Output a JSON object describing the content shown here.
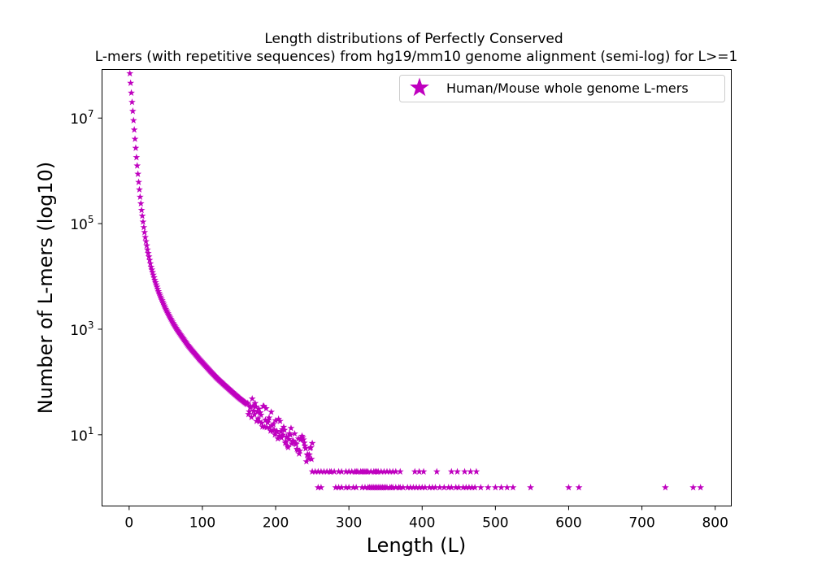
{
  "chart_data": {
    "type": "scatter",
    "title_line1": "Length distributions of Perfectly Conserved",
    "title_line2": "L-mers (with repetitive sequences) from hg19/mm10 genome alignment (semi-log) for L>=1",
    "xlabel": "Length (L)",
    "ylabel": "Number of L-mers (log10)",
    "y_scale": "log",
    "xlim": [
      -37,
      822
    ],
    "ylim_log10": [
      -0.35,
      7.92
    ],
    "x_ticks": [
      0,
      100,
      200,
      300,
      400,
      500,
      600,
      700,
      800
    ],
    "y_ticks": [
      {
        "base": "10",
        "exp": "1",
        "log10": 1
      },
      {
        "base": "10",
        "exp": "3",
        "log10": 3
      },
      {
        "base": "10",
        "exp": "5",
        "log10": 5
      },
      {
        "base": "10",
        "exp": "7",
        "log10": 7
      }
    ],
    "grid": false,
    "legend_position": "upper-right",
    "series": [
      {
        "name": "Human/Mouse whole genome L-mers",
        "color": "#bf00bf",
        "marker": "star",
        "curve": [
          [
            1,
            70000000
          ],
          [
            2,
            46000000
          ],
          [
            3,
            30000000
          ],
          [
            4,
            20000000
          ],
          [
            5,
            13500000
          ],
          [
            6,
            9000000
          ],
          [
            7,
            6000000
          ],
          [
            8,
            4000000
          ],
          [
            9,
            2700000
          ],
          [
            10,
            1800000
          ],
          [
            11,
            1250000
          ],
          [
            12,
            870000
          ],
          [
            13,
            610000
          ],
          [
            14,
            440000
          ],
          [
            15,
            320000
          ],
          [
            16,
            240000
          ],
          [
            17,
            180000
          ],
          [
            18,
            140000
          ],
          [
            19,
            108000
          ],
          [
            20,
            85000
          ],
          [
            22,
            55000
          ],
          [
            25,
            32000
          ],
          [
            30,
            15000
          ],
          [
            35,
            8500
          ],
          [
            40,
            5200
          ],
          [
            45,
            3500
          ],
          [
            50,
            2400
          ],
          [
            55,
            1750
          ],
          [
            60,
            1300
          ],
          [
            65,
            1000
          ],
          [
            70,
            790
          ],
          [
            75,
            630
          ],
          [
            80,
            500
          ],
          [
            85,
            410
          ],
          [
            90,
            340
          ],
          [
            95,
            280
          ],
          [
            100,
            235
          ],
          [
            110,
            165
          ],
          [
            120,
            118
          ],
          [
            130,
            88
          ],
          [
            140,
            66
          ],
          [
            150,
            50
          ],
          [
            160,
            39
          ],
          [
            170,
            31
          ],
          [
            180,
            24
          ],
          [
            190,
            18
          ],
          [
            200,
            14
          ],
          [
            210,
            11
          ],
          [
            220,
            8.5
          ],
          [
            230,
            6.7
          ],
          [
            240,
            5.3
          ],
          [
            250,
            4.3
          ],
          [
            260,
            3.5
          ],
          [
            270,
            2.9
          ],
          [
            280,
            2.4
          ],
          [
            300,
            1.8
          ],
          [
            320,
            1.4
          ],
          [
            350,
            1.1
          ]
        ],
        "value_two_x": [
          250,
          254,
          258,
          262,
          266,
          270,
          274,
          276,
          280,
          286,
          290,
          296,
          300,
          304,
          308,
          310,
          312,
          316,
          318,
          320,
          322,
          324,
          326,
          330,
          334,
          336,
          338,
          340,
          344,
          348,
          352,
          356,
          360,
          364,
          370,
          390,
          396,
          402,
          420,
          440,
          448,
          458,
          466,
          474
        ],
        "value_one_x": [
          258,
          262,
          282,
          286,
          290,
          296,
          300,
          306,
          310,
          318,
          322,
          326,
          328,
          330,
          332,
          334,
          336,
          338,
          340,
          342,
          344,
          346,
          348,
          350,
          352,
          356,
          358,
          360,
          364,
          368,
          370,
          374,
          380,
          384,
          388,
          392,
          396,
          400,
          404,
          410,
          414,
          418,
          424,
          430,
          436,
          440,
          446,
          450,
          456,
          460,
          464,
          468,
          472,
          480,
          490,
          500,
          508,
          516,
          524,
          548,
          600,
          614,
          732,
          770,
          780
        ]
      }
    ]
  }
}
